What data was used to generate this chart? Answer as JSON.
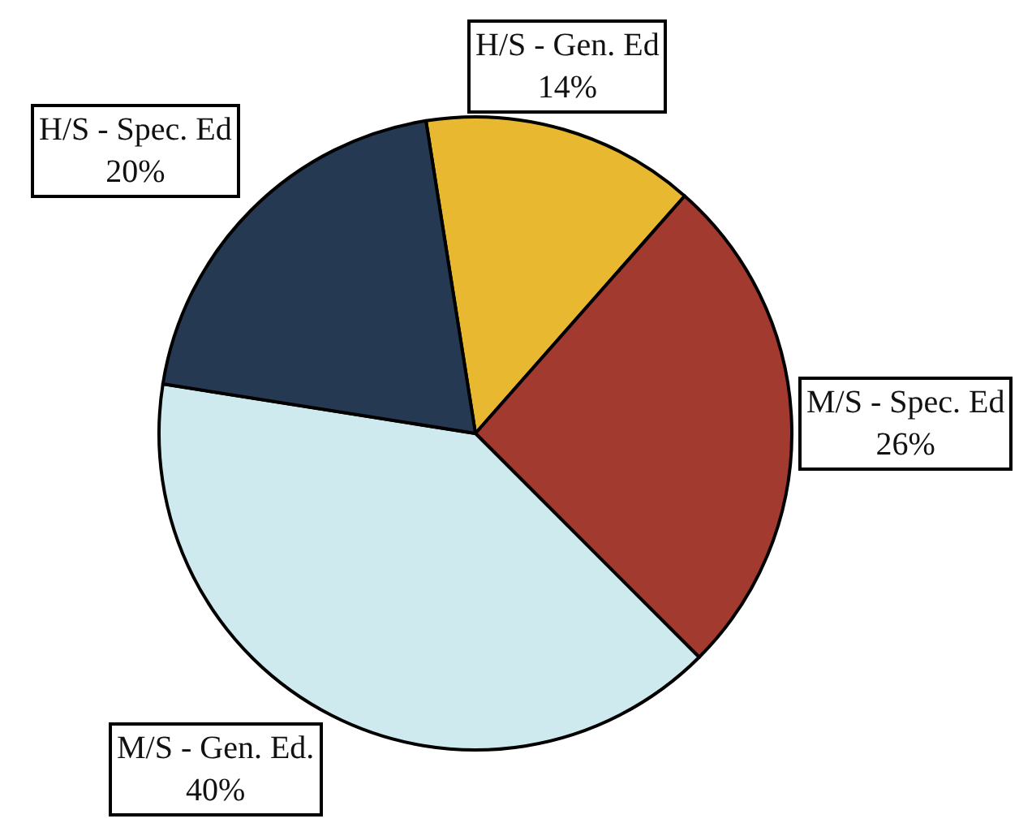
{
  "chart_data": {
    "type": "pie",
    "categories": [
      "H/S - Gen. Ed",
      "M/S - Spec. Ed",
      "M/S - Gen. Ed.",
      "H/S - Spec. Ed"
    ],
    "values": [
      14,
      26,
      40,
      20
    ],
    "value_labels": [
      "14%",
      "26%",
      "40%",
      "20%"
    ],
    "colors": [
      "#e8b830",
      "#a33a30",
      "#cfeaee",
      "#253a52"
    ],
    "legend": false
  }
}
